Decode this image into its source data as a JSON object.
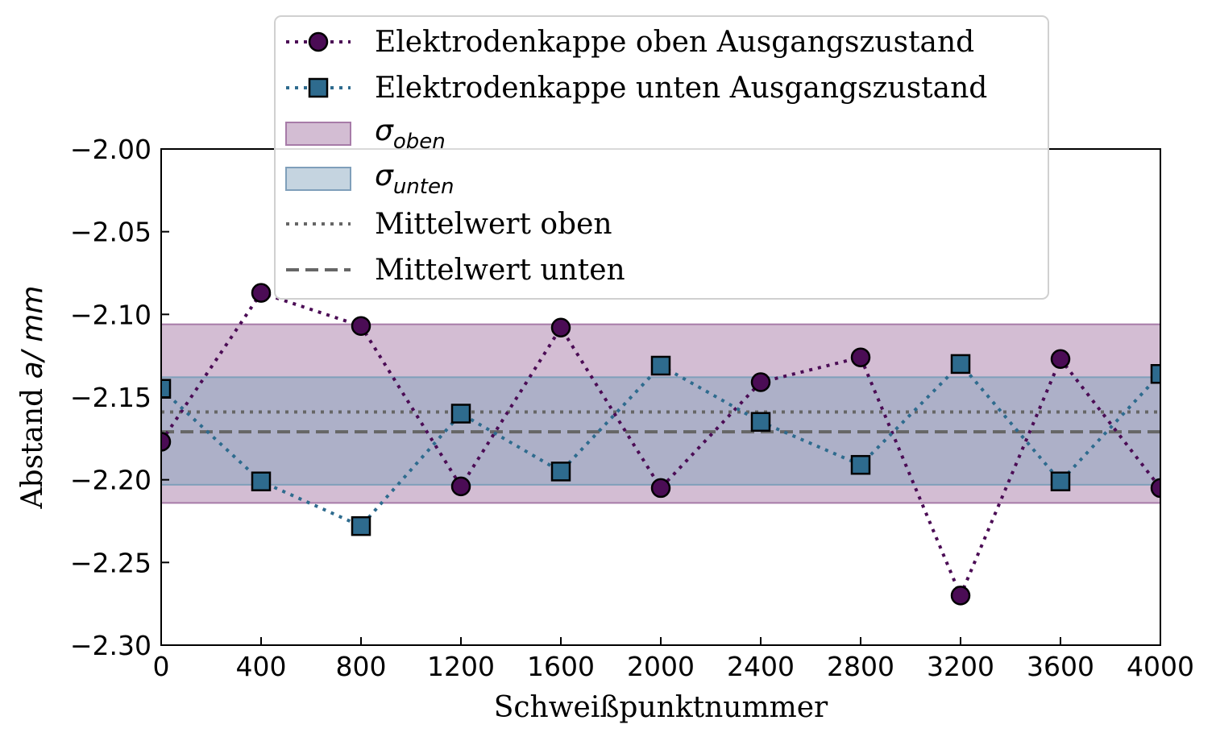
{
  "chart_data": {
    "type": "line",
    "xlabel": "Schweißpunktnummer",
    "ylabel_prefix": "Abstand ",
    "ylabel_math": "a/ mm",
    "xlim": [
      0,
      4000
    ],
    "ylim": [
      -2.3,
      -2.0
    ],
    "x_ticks": [
      0,
      400,
      800,
      1200,
      1600,
      2000,
      2400,
      2800,
      3200,
      3600,
      4000
    ],
    "x_tick_labels": [
      "0",
      "400",
      "800",
      "1200",
      "1600",
      "2000",
      "2400",
      "2800",
      "3200",
      "3600",
      "4000"
    ],
    "y_ticks": [
      -2.3,
      -2.25,
      -2.2,
      -2.15,
      -2.1,
      -2.05,
      -2.0
    ],
    "y_tick_labels": [
      "−2.30",
      "−2.25",
      "−2.20",
      "−2.15",
      "−2.10",
      "−2.05",
      "−2.00"
    ],
    "grid": false,
    "legend_position": "top-center",
    "series": [
      {
        "name": "Elektrodenkappe oben Ausgangszustand",
        "marker": "circle",
        "color": "#4b0c55",
        "line": "dotted",
        "x": [
          0,
          400,
          800,
          1200,
          1600,
          2000,
          2400,
          2800,
          3200,
          3600,
          4000
        ],
        "y": [
          -2.177,
          -2.087,
          -2.107,
          -2.204,
          -2.108,
          -2.205,
          -2.141,
          -2.126,
          -2.27,
          -2.127,
          -2.205
        ]
      },
      {
        "name": "Elektrodenkappe unten Ausgangszustand",
        "marker": "square",
        "color": "#2e6b8e",
        "line": "dotted",
        "x": [
          0,
          400,
          800,
          1200,
          1600,
          2000,
          2400,
          2800,
          3200,
          3600,
          4000
        ],
        "y": [
          -2.145,
          -2.201,
          -2.228,
          -2.16,
          -2.195,
          -2.131,
          -2.165,
          -2.191,
          -2.13,
          -2.201,
          -2.136
        ]
      }
    ],
    "bands": [
      {
        "name_base": "σ",
        "name_sub": "oben",
        "lower": -2.214,
        "upper": -2.106,
        "color": "#a77ba8",
        "opacity": 0.5
      },
      {
        "name_base": "σ",
        "name_sub": "unten",
        "lower": -2.203,
        "upper": -2.138,
        "color": "#7f9fba",
        "opacity": 0.45
      }
    ],
    "mean_lines": [
      {
        "name": "Mittelwert oben",
        "value": -2.159,
        "style": "dotted",
        "color": "#666666"
      },
      {
        "name": "Mittelwert unten",
        "value": -2.171,
        "style": "dashed",
        "color": "#666666"
      }
    ]
  }
}
